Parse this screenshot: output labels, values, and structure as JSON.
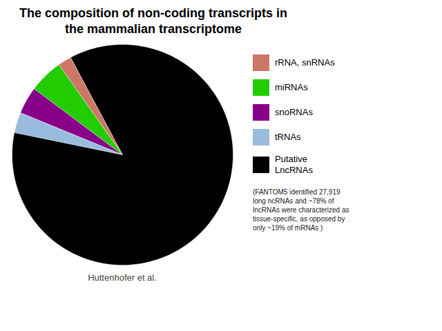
{
  "chart_data": {
    "type": "pie",
    "title": "The composition of non-coding transcripts in\nthe mammalian transcriptome",
    "categories": [
      "rRNA, snRNAs",
      "miRNAs",
      "snoRNAs",
      "tRNAs",
      "Putative\nLncRNAs"
    ],
    "values": [
      2,
      5,
      4,
      3,
      86
    ],
    "colors": [
      "#cc7766",
      "#22cc00",
      "#880088",
      "#99bbdd",
      "#000000"
    ],
    "legend": "right",
    "annotation": "(FANTOM5 identified 27,919\nlong ncRNAs and ~78% of\nlncRNAs were characterized as\ntissue-specific, as opposed by\nonly ~19% of mRNAs )",
    "source": "Huttenhofer et al."
  }
}
